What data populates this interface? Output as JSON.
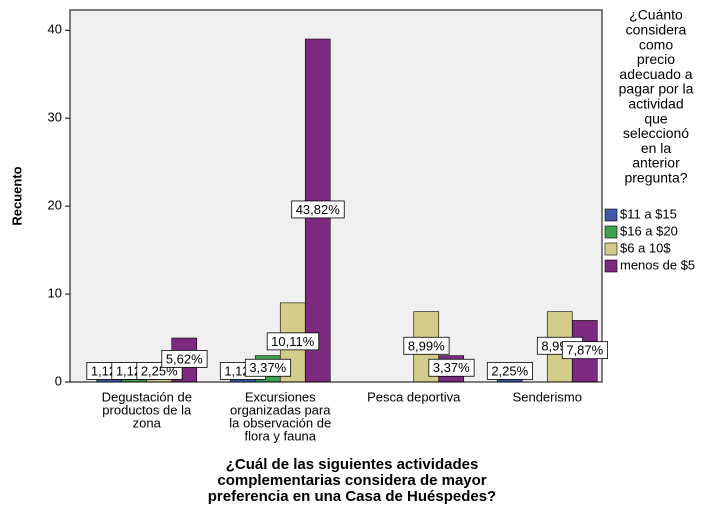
{
  "chart_data": {
    "type": "bar",
    "y_label": "Recuento",
    "x_label": [
      "¿Cuál de las siguientes actividades",
      "complementarias considera de mayor",
      "preferencia en una Casa de Huéspedes?"
    ],
    "legend_title": [
      "¿Cuánto",
      "considera",
      "como",
      "precio",
      "adecuado a",
      "pagar por la",
      "actividad",
      "que",
      "seleccionó",
      "en la",
      "anterior",
      "pregunta?"
    ],
    "categories": [
      [
        "Degustación de",
        "productos de la",
        "zona"
      ],
      [
        "Excursiones",
        "organizadas para",
        "la observación de",
        "flora y fauna"
      ],
      [
        "Pesca deportiva"
      ],
      [
        "Senderismo"
      ]
    ],
    "series": [
      {
        "name": "$11 a $15",
        "color": "#3e58ac",
        "values": [
          1,
          1,
          null,
          2
        ],
        "value_labels": [
          "1,12%",
          "1,12%",
          null,
          "2,25%"
        ]
      },
      {
        "name": "$16 a $20",
        "color": "#3da44d",
        "values": [
          1,
          3,
          null,
          null
        ],
        "value_labels": [
          "1,12%",
          "3,37%",
          null,
          null
        ]
      },
      {
        "name": "$6 a 10$",
        "color": "#d3cc8b",
        "values": [
          2,
          9,
          8,
          8
        ],
        "value_labels": [
          "2,25%",
          "10,11%",
          "8,99%",
          "8,99%"
        ]
      },
      {
        "name": "menos de $5",
        "color": "#7b2a80",
        "values": [
          5,
          39,
          3,
          7
        ],
        "value_labels": [
          "5,62%",
          "43,82%",
          "3,37%",
          "7,87%"
        ]
      }
    ],
    "ylim": [
      0,
      42.3
    ],
    "yticks": [
      0,
      10,
      20,
      30,
      40
    ]
  }
}
